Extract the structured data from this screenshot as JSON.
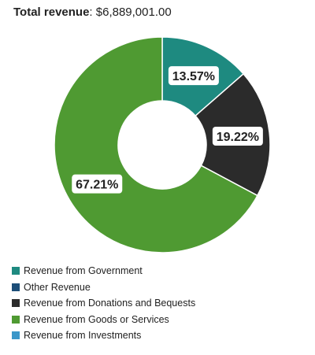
{
  "header": {
    "label": "Total revenue",
    "separator": ": ",
    "value": "$6,889,001.00"
  },
  "chart_data": {
    "type": "pie",
    "variant": "donut",
    "categories": [
      "Revenue from Government",
      "Other Revenue",
      "Revenue from Donations and Bequests",
      "Revenue from Goods or Services",
      "Revenue from Investments"
    ],
    "values": [
      13.57,
      0,
      19.22,
      67.21,
      0
    ],
    "labels": [
      "13.57%",
      "",
      "19.22%",
      "67.21%",
      ""
    ],
    "unit": "%",
    "colors": [
      "#1e8a80",
      "#1c4e78",
      "#2b2b2b",
      "#4f9a32",
      "#3b97c9"
    ],
    "legend_position": "bottom-left"
  }
}
